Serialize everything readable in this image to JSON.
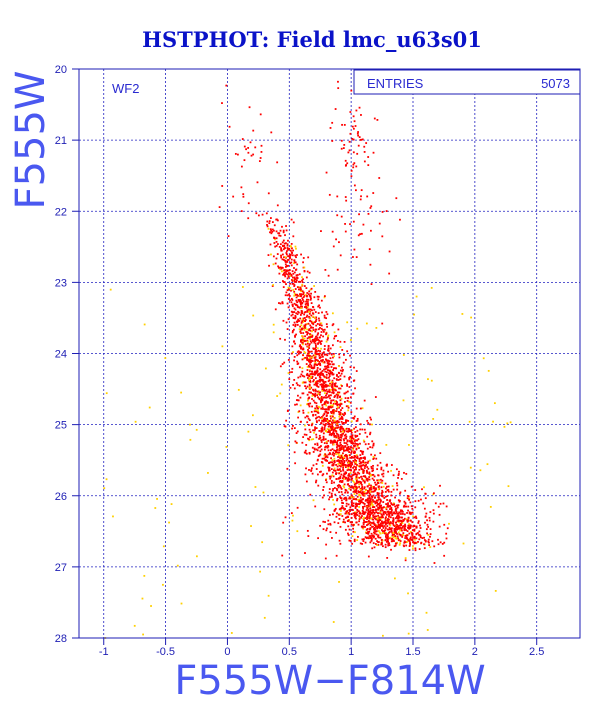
{
  "chart_data": {
    "type": "scatter",
    "title": "HSTPHOT: Field lmc_u63s01",
    "xlabel": "F555W−F814W",
    "ylabel": "F555W",
    "xlim": [
      -1.2,
      2.85
    ],
    "ylim": [
      28,
      20
    ],
    "y_inverted": true,
    "x_ticks": [
      "-1",
      "-0.5",
      "0",
      "0.5",
      "1",
      "1.5",
      "2",
      "2.5"
    ],
    "x_tick_values": [
      -1,
      -0.5,
      0,
      0.5,
      1,
      1.5,
      2,
      2.5
    ],
    "y_ticks": [
      "20",
      "21",
      "22",
      "23",
      "24",
      "25",
      "26",
      "27",
      "28"
    ],
    "y_tick_values": [
      20,
      21,
      22,
      23,
      24,
      25,
      26,
      27,
      28
    ],
    "grid": true,
    "panel_label": "WF2",
    "stats_label": "ENTRIES",
    "stats_value": "5073",
    "series": [
      {
        "color": "#ff0000",
        "description_note": "main CMD sequence",
        "ridge": [
          [
            22.0,
            0.35
          ],
          [
            22.5,
            0.45
          ],
          [
            23.0,
            0.55
          ],
          [
            23.5,
            0.65
          ],
          [
            24.0,
            0.72
          ],
          [
            24.5,
            0.78
          ],
          [
            25.0,
            0.85
          ],
          [
            25.5,
            0.95
          ],
          [
            26.0,
            1.1
          ],
          [
            26.4,
            1.25
          ],
          [
            26.7,
            1.45
          ]
        ],
        "clumps": [
          {
            "x": 1.0,
            "y": 21.0,
            "sx": 0.1,
            "sy": 0.4,
            "n": 60
          },
          {
            "x": 0.2,
            "y": 21.4,
            "sx": 0.12,
            "sy": 0.5,
            "n": 40
          },
          {
            "x": 1.05,
            "y": 22.2,
            "sx": 0.15,
            "sy": 0.5,
            "n": 50
          },
          {
            "x": 1.25,
            "y": 26.3,
            "sx": 0.25,
            "sy": 0.25,
            "n": 300
          }
        ],
        "count": 3000
      },
      {
        "color": "#ffd000",
        "description_note": "field stars",
        "count": 110,
        "x_range": [
          -1.0,
          2.4
        ],
        "y_range": [
          23.0,
          28.0
        ]
      }
    ]
  }
}
